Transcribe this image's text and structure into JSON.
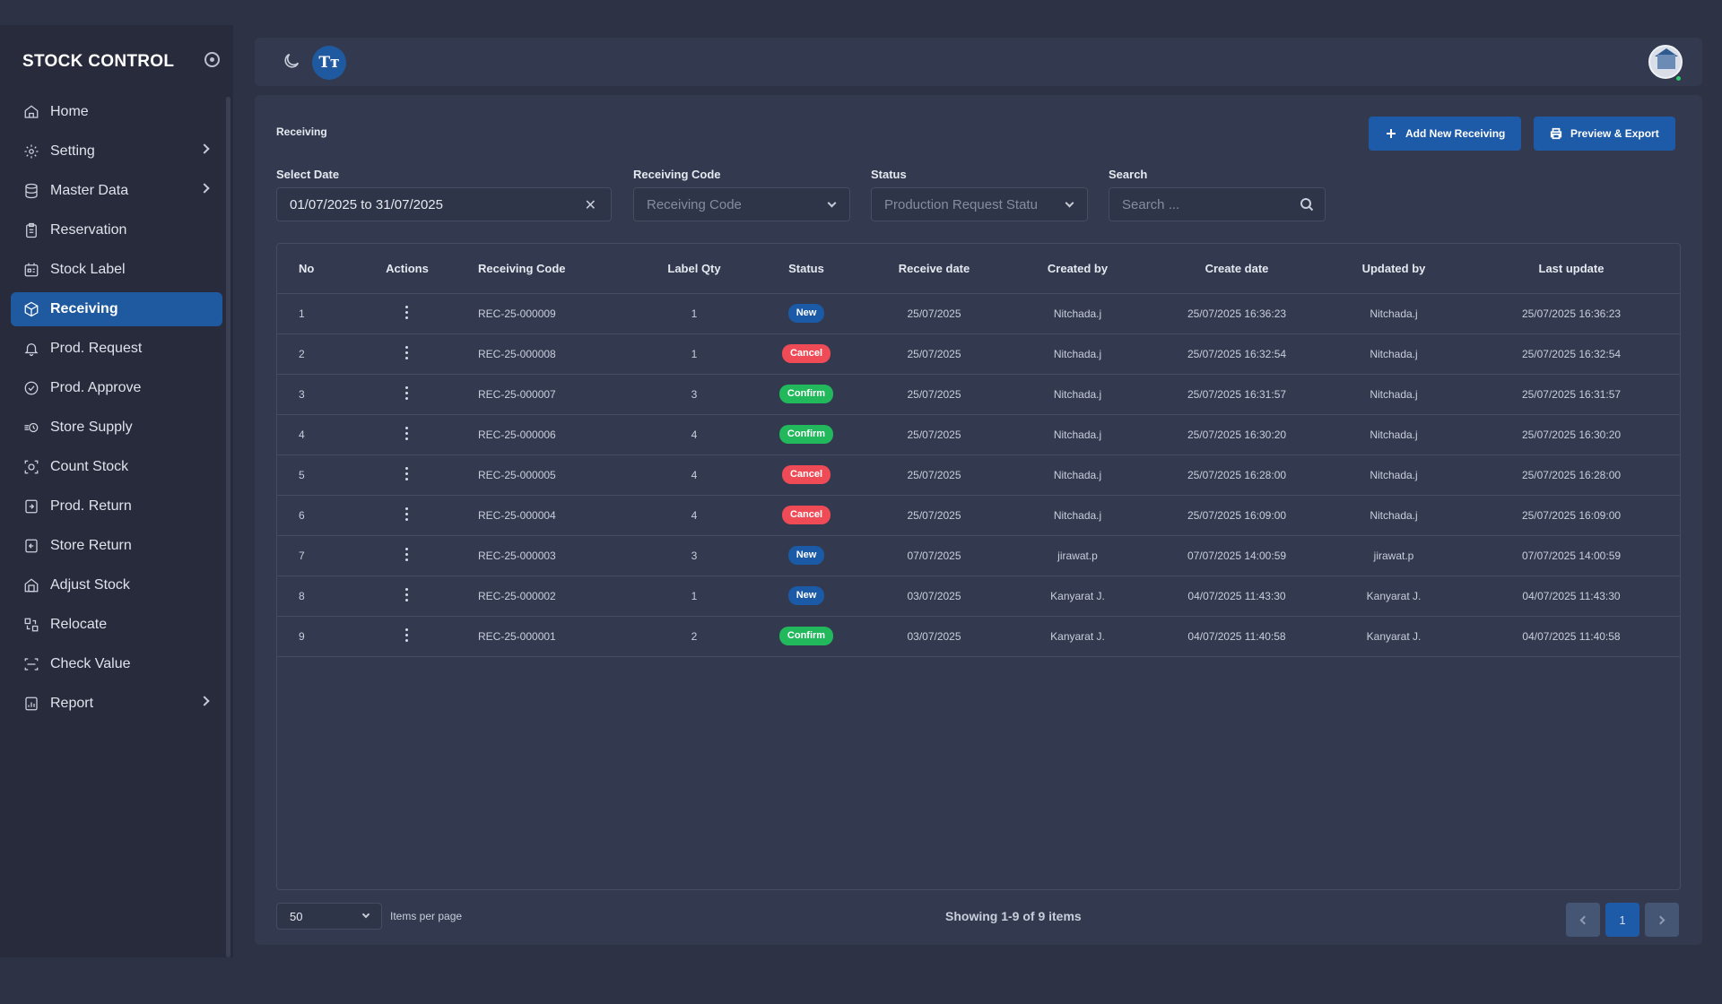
{
  "sidebar": {
    "brand": "STOCK CONTROL",
    "items": [
      {
        "label": "Home",
        "icon": "home-icon"
      },
      {
        "label": "Setting",
        "icon": "gear-icon",
        "has_children": true
      },
      {
        "label": "Master Data",
        "icon": "database-icon",
        "has_children": true
      },
      {
        "label": "Reservation",
        "icon": "clipboard-icon"
      },
      {
        "label": "Stock Label",
        "icon": "label-icon"
      },
      {
        "label": "Receiving",
        "icon": "box-icon",
        "active": true
      },
      {
        "label": "Prod. Request",
        "icon": "bell-icon"
      },
      {
        "label": "Prod. Approve",
        "icon": "approve-icon"
      },
      {
        "label": "Store Supply",
        "icon": "supply-icon"
      },
      {
        "label": "Count Stock",
        "icon": "count-icon"
      },
      {
        "label": "Prod. Return",
        "icon": "return-icon"
      },
      {
        "label": "Store Return",
        "icon": "store-return-icon"
      },
      {
        "label": "Adjust Stock",
        "icon": "adjust-icon"
      },
      {
        "label": "Relocate",
        "icon": "relocate-icon"
      },
      {
        "label": "Check Value",
        "icon": "check-value-icon"
      },
      {
        "label": "Report",
        "icon": "report-icon",
        "has_children": true
      }
    ]
  },
  "topbar": {
    "font_button_label": "Tт"
  },
  "page": {
    "title": "Receiving",
    "add_button": "Add New Receiving",
    "export_button": "Preview & Export"
  },
  "filters": {
    "date_label": "Select Date",
    "date_value": "01/07/2025 to 31/07/2025",
    "code_label": "Receiving Code",
    "code_placeholder": "Receiving Code",
    "status_label": "Status",
    "status_placeholder": "Production Request Statu",
    "search_label": "Search",
    "search_placeholder": "Search ..."
  },
  "table": {
    "columns": [
      "No",
      "Actions",
      "Receiving Code",
      "Label Qty",
      "Status",
      "Receive date",
      "Created by",
      "Create date",
      "Updated by",
      "Last update"
    ],
    "rows": [
      {
        "no": "1",
        "code": "REC-25-000009",
        "qty": "1",
        "status": "New",
        "receive": "25/07/2025",
        "created_by": "Nitchada.j",
        "create_date": "25/07/2025 16:36:23",
        "updated_by": "Nitchada.j",
        "last_update": "25/07/2025 16:36:23"
      },
      {
        "no": "2",
        "code": "REC-25-000008",
        "qty": "1",
        "status": "Cancel",
        "receive": "25/07/2025",
        "created_by": "Nitchada.j",
        "create_date": "25/07/2025 16:32:54",
        "updated_by": "Nitchada.j",
        "last_update": "25/07/2025 16:32:54"
      },
      {
        "no": "3",
        "code": "REC-25-000007",
        "qty": "3",
        "status": "Confirm",
        "receive": "25/07/2025",
        "created_by": "Nitchada.j",
        "create_date": "25/07/2025 16:31:57",
        "updated_by": "Nitchada.j",
        "last_update": "25/07/2025 16:31:57"
      },
      {
        "no": "4",
        "code": "REC-25-000006",
        "qty": "4",
        "status": "Confirm",
        "receive": "25/07/2025",
        "created_by": "Nitchada.j",
        "create_date": "25/07/2025 16:30:20",
        "updated_by": "Nitchada.j",
        "last_update": "25/07/2025 16:30:20"
      },
      {
        "no": "5",
        "code": "REC-25-000005",
        "qty": "4",
        "status": "Cancel",
        "receive": "25/07/2025",
        "created_by": "Nitchada.j",
        "create_date": "25/07/2025 16:28:00",
        "updated_by": "Nitchada.j",
        "last_update": "25/07/2025 16:28:00"
      },
      {
        "no": "6",
        "code": "REC-25-000004",
        "qty": "4",
        "status": "Cancel",
        "receive": "25/07/2025",
        "created_by": "Nitchada.j",
        "create_date": "25/07/2025 16:09:00",
        "updated_by": "Nitchada.j",
        "last_update": "25/07/2025 16:09:00"
      },
      {
        "no": "7",
        "code": "REC-25-000003",
        "qty": "3",
        "status": "New",
        "receive": "07/07/2025",
        "created_by": "jirawat.p",
        "create_date": "07/07/2025 14:00:59",
        "updated_by": "jirawat.p",
        "last_update": "07/07/2025 14:00:59"
      },
      {
        "no": "8",
        "code": "REC-25-000002",
        "qty": "1",
        "status": "New",
        "receive": "03/07/2025",
        "created_by": "Kanyarat J.",
        "create_date": "04/07/2025 11:43:30",
        "updated_by": "Kanyarat J.",
        "last_update": "04/07/2025 11:43:30"
      },
      {
        "no": "9",
        "code": "REC-25-000001",
        "qty": "2",
        "status": "Confirm",
        "receive": "03/07/2025",
        "created_by": "Kanyarat J.",
        "create_date": "04/07/2025 11:40:58",
        "updated_by": "Kanyarat J.",
        "last_update": "04/07/2025 11:40:58"
      }
    ]
  },
  "footer": {
    "page_size": "50",
    "items_per_page_label": "Items per page",
    "showing": "Showing 1-9 of 9 items",
    "current_page": "1"
  },
  "colors": {
    "active_nav": "#1f5aa0",
    "new_badge": "#1a5aa6",
    "cancel_badge": "#ef4b56",
    "confirm_badge": "#22b85c"
  }
}
